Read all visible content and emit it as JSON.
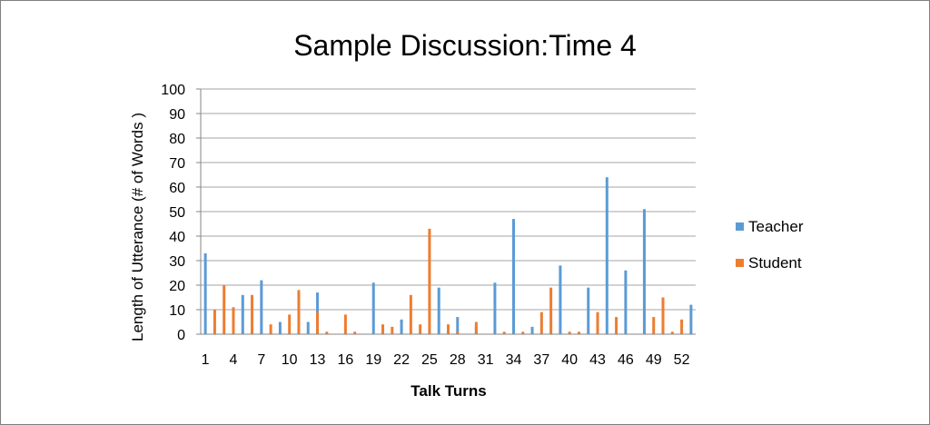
{
  "chart_data": {
    "type": "bar",
    "title": "Sample Discussion:Time 4",
    "xlabel": "Talk Turns",
    "ylabel": "Length of Utterance (# of Words )",
    "ylim": [
      0,
      100
    ],
    "yticks": [
      0,
      10,
      20,
      30,
      40,
      50,
      60,
      70,
      80,
      90,
      100
    ],
    "grid": true,
    "legend_position": "right",
    "categories": [
      "1",
      "2",
      "3",
      "4",
      "5",
      "6",
      "7",
      "8",
      "9",
      "10",
      "11",
      "12",
      "13",
      "14",
      "15",
      "16",
      "17",
      "18",
      "19",
      "20",
      "21",
      "22",
      "23",
      "24",
      "25",
      "26",
      "27",
      "28",
      "29",
      "30",
      "31",
      "32",
      "33",
      "34",
      "35",
      "36",
      "37",
      "38",
      "39",
      "40",
      "41",
      "42",
      "43",
      "44",
      "45",
      "46",
      "47",
      "48",
      "49",
      "50",
      "51",
      "52",
      "53"
    ],
    "xtick_labels": [
      "1",
      "4",
      "7",
      "10",
      "13",
      "16",
      "19",
      "22",
      "25",
      "28",
      "31",
      "34",
      "37",
      "40",
      "43",
      "46",
      "49",
      "52"
    ],
    "series": [
      {
        "name": "Teacher",
        "color": "#5b9bd5",
        "values": [
          33,
          0,
          0,
          0,
          16,
          0,
          22,
          0,
          5,
          0,
          0,
          5,
          17,
          0,
          0,
          0,
          0,
          0,
          21,
          0,
          0,
          6,
          0,
          0,
          0,
          19,
          0,
          7,
          0,
          3,
          0,
          21,
          0,
          47,
          0,
          3,
          0,
          0,
          28,
          0,
          0,
          19,
          0,
          64,
          0,
          26,
          0,
          51,
          0,
          0,
          0,
          0,
          12
        ]
      },
      {
        "name": "Student",
        "color": "#ed7d31",
        "values": [
          0,
          10,
          20,
          11,
          0,
          16,
          0,
          4,
          0,
          8,
          18,
          0,
          9,
          1,
          0,
          8,
          1,
          0,
          0,
          4,
          3,
          0,
          16,
          4,
          43,
          0,
          4,
          1,
          0,
          5,
          0,
          0,
          1,
          0,
          1,
          0,
          9,
          19,
          0,
          1,
          1,
          0,
          9,
          0,
          7,
          0,
          0,
          0,
          7,
          15,
          1,
          6,
          0
        ]
      }
    ]
  },
  "colors": {
    "gridline": "#a6a6a6",
    "axis": "#868686",
    "text": "#000000",
    "border": "#7f7f7f"
  }
}
